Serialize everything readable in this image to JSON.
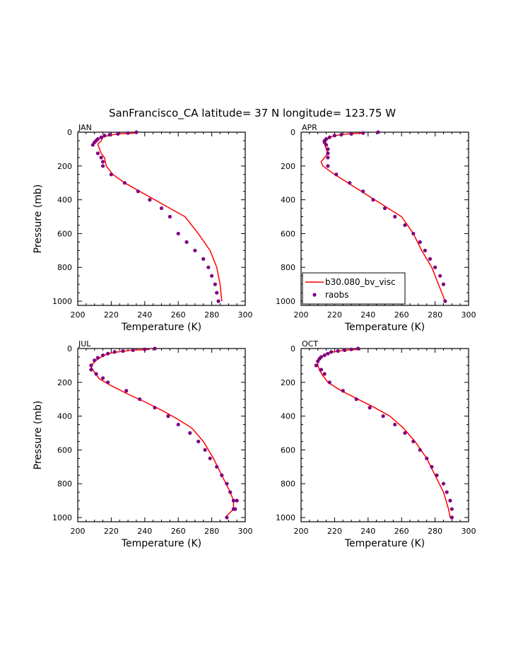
{
  "figure": {
    "title": "SanFrancisco_CA  latitude= 37 N longitude= 123.75 W",
    "xlabel": "Temperature (K)",
    "ylabel": "Pressure (mb)",
    "legend": {
      "model_label": "b30.080_bv_visc",
      "obs_label": "raobs",
      "placement": "bottom-left of APR panel"
    },
    "colors": {
      "model": "#ff0000",
      "obs": "#800080",
      "axes": "#000000"
    }
  },
  "chart_data": [
    {
      "type": "line",
      "panel": "JAN",
      "xlim": [
        200,
        300
      ],
      "ylim": [
        1025,
        0
      ],
      "y_inverted": true,
      "xticks": [
        200,
        220,
        240,
        260,
        280,
        300
      ],
      "yticks": [
        0,
        200,
        400,
        600,
        800,
        1000
      ],
      "series": [
        {
          "name": "b30.080_bv_visc",
          "kind": "line",
          "x": [
            235,
            224,
            218,
            215,
            214,
            212,
            213,
            214,
            216,
            217,
            221,
            228,
            237,
            246,
            255,
            264,
            272,
            279,
            283,
            285,
            286
          ],
          "y": [
            5,
            10,
            20,
            30,
            50,
            70,
            100,
            125,
            150,
            200,
            250,
            300,
            350,
            400,
            450,
            500,
            600,
            700,
            800,
            900,
            1000
          ]
        },
        {
          "name": "raobs",
          "kind": "scatter",
          "x": [
            235,
            230,
            224,
            219,
            216,
            214,
            212,
            211,
            210,
            209,
            212,
            214,
            215,
            215,
            220,
            228,
            236,
            243,
            250,
            255,
            260,
            265,
            270,
            275,
            278,
            280,
            282,
            283,
            284
          ],
          "y": [
            0,
            5,
            10,
            15,
            20,
            30,
            40,
            50,
            60,
            75,
            125,
            150,
            175,
            200,
            250,
            300,
            350,
            400,
            450,
            500,
            600,
            650,
            700,
            750,
            800,
            850,
            900,
            950,
            1000
          ]
        }
      ]
    },
    {
      "type": "line",
      "panel": "APR",
      "xlim": [
        200,
        300
      ],
      "ylim": [
        1025,
        0
      ],
      "y_inverted": true,
      "xticks": [
        200,
        220,
        240,
        260,
        280,
        300
      ],
      "yticks": [
        0,
        200,
        400,
        600,
        800,
        1000
      ],
      "series": [
        {
          "name": "b30.080_bv_visc",
          "kind": "line",
          "x": [
            238,
            228,
            220,
            217,
            215,
            214,
            215,
            216,
            214,
            212,
            213,
            220,
            228,
            236,
            244,
            252,
            260,
            267,
            272,
            278,
            284,
            286
          ],
          "y": [
            5,
            10,
            20,
            30,
            50,
            70,
            100,
            125,
            150,
            175,
            200,
            250,
            300,
            350,
            400,
            450,
            500,
            600,
            700,
            800,
            950,
            1000
          ]
        },
        {
          "name": "raobs",
          "kind": "scatter",
          "x": [
            246,
            237,
            230,
            224,
            220,
            217,
            215,
            214,
            214,
            215,
            216,
            216,
            216,
            216,
            221,
            229,
            237,
            243,
            250,
            256,
            262,
            267,
            271,
            274,
            277,
            280,
            283,
            285,
            286
          ],
          "y": [
            0,
            5,
            10,
            15,
            20,
            30,
            40,
            50,
            60,
            75,
            100,
            125,
            150,
            200,
            250,
            300,
            350,
            400,
            450,
            500,
            550,
            600,
            650,
            700,
            750,
            800,
            850,
            900,
            1000
          ]
        }
      ]
    },
    {
      "type": "line",
      "panel": "JUL",
      "xlim": [
        200,
        300
      ],
      "ylim": [
        1025,
        0
      ],
      "y_inverted": true,
      "xticks": [
        200,
        220,
        240,
        260,
        280,
        300
      ],
      "yticks": [
        0,
        200,
        400,
        600,
        800,
        1000
      ],
      "series": [
        {
          "name": "b30.080_bv_visc",
          "kind": "line",
          "x": [
            243,
            232,
            224,
            218,
            214,
            211,
            209,
            208,
            210,
            213,
            220,
            230,
            241,
            251,
            260,
            268,
            275,
            281,
            286,
            291,
            293,
            293,
            289,
            288
          ],
          "y": [
            5,
            10,
            20,
            30,
            50,
            70,
            90,
            110,
            140,
            180,
            220,
            270,
            320,
            370,
            420,
            470,
            550,
            650,
            750,
            850,
            900,
            950,
            990,
            1000
          ]
        },
        {
          "name": "raobs",
          "kind": "scatter",
          "x": [
            246,
            240,
            233,
            227,
            222,
            218,
            215,
            212,
            210,
            208,
            208,
            211,
            215,
            218,
            229,
            237,
            246,
            254,
            260,
            267,
            272,
            276,
            279,
            283,
            286,
            289,
            291,
            293,
            294,
            295,
            293,
            289
          ],
          "y": [
            0,
            5,
            10,
            15,
            20,
            30,
            40,
            55,
            70,
            100,
            125,
            150,
            175,
            200,
            250,
            300,
            350,
            400,
            450,
            500,
            550,
            600,
            650,
            700,
            750,
            800,
            850,
            900,
            950,
            900,
            950,
            1000
          ]
        }
      ]
    },
    {
      "type": "line",
      "panel": "OCT",
      "xlim": [
        200,
        300
      ],
      "ylim": [
        1025,
        0
      ],
      "y_inverted": true,
      "xticks": [
        200,
        220,
        240,
        260,
        280,
        300
      ],
      "yticks": [
        0,
        200,
        400,
        600,
        800,
        1000
      ],
      "series": [
        {
          "name": "b30.080_bv_visc",
          "kind": "line",
          "x": [
            235,
            226,
            219,
            215,
            212,
            210,
            210,
            211,
            213,
            216,
            224,
            234,
            244,
            253,
            261,
            268,
            275,
            280,
            285,
            288,
            289
          ],
          "y": [
            5,
            10,
            20,
            30,
            50,
            70,
            100,
            130,
            160,
            200,
            250,
            300,
            350,
            400,
            470,
            550,
            650,
            750,
            850,
            950,
            1000
          ]
        },
        {
          "name": "raobs",
          "kind": "scatter",
          "x": [
            234,
            230,
            226,
            222,
            218,
            216,
            214,
            212,
            211,
            210,
            209,
            212,
            214,
            217,
            225,
            233,
            241,
            249,
            256,
            262,
            267,
            271,
            275,
            278,
            281,
            285,
            287,
            289,
            290,
            290,
            290
          ],
          "y": [
            0,
            5,
            10,
            15,
            20,
            30,
            40,
            50,
            60,
            75,
            100,
            125,
            150,
            200,
            250,
            300,
            350,
            400,
            450,
            500,
            550,
            600,
            650,
            700,
            750,
            800,
            850,
            900,
            950,
            1000,
            1000
          ]
        }
      ]
    }
  ]
}
